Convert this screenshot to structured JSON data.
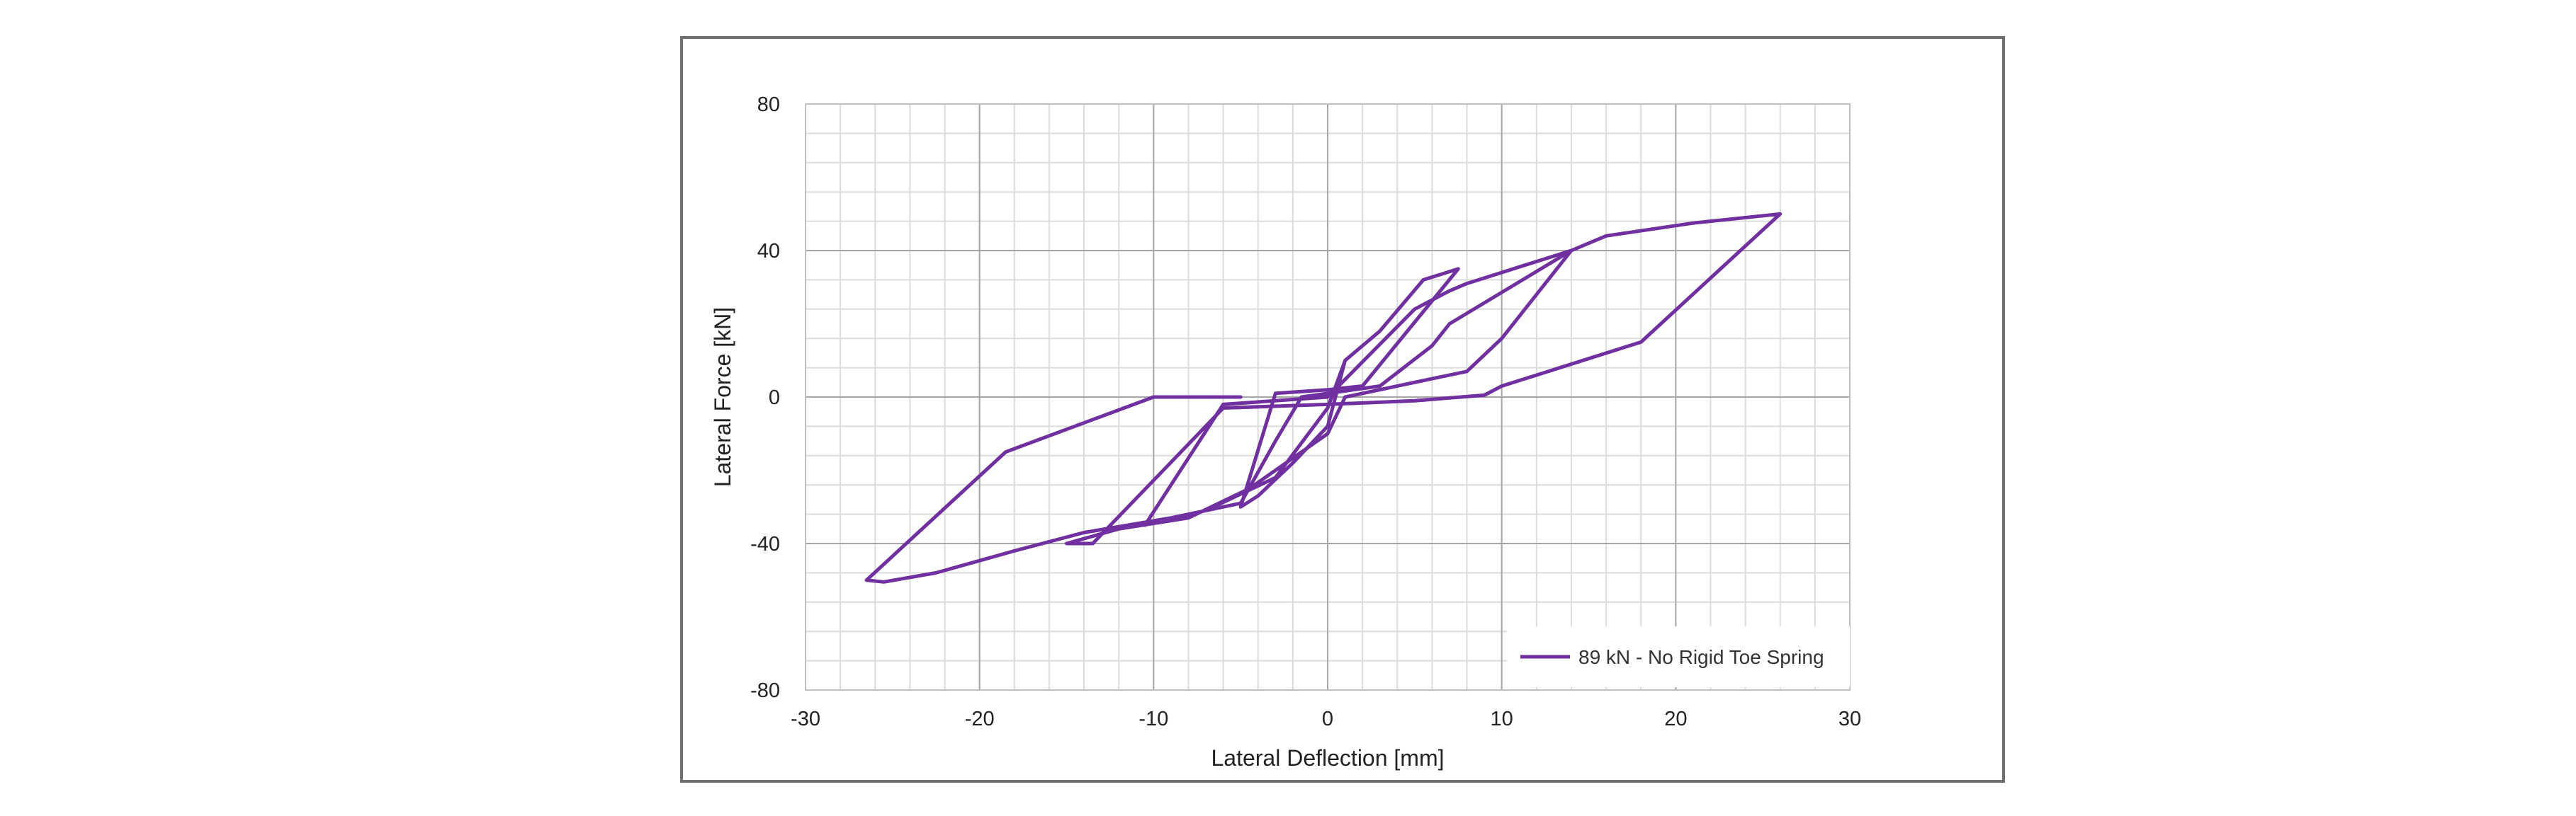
{
  "chart_data": {
    "type": "line",
    "title": "",
    "xlabel": "Lateral Deflection [mm]",
    "ylabel": "Lateral Force [kN]",
    "xlim": [
      -30,
      30
    ],
    "ylim": [
      -80,
      80
    ],
    "x_major_ticks": [
      -30,
      -20,
      -10,
      0,
      10,
      20,
      30
    ],
    "y_major_ticks": [
      -80,
      -40,
      0,
      40,
      80
    ],
    "x_minor_step": 2,
    "y_minor_step": 8,
    "grid": true,
    "legend_position": "bottom-right",
    "series": [
      {
        "name": "89 kN - No Rigid Toe Spring",
        "color": "#7030a0",
        "points": [
          [
            -5,
            0
          ],
          [
            -10,
            0
          ],
          [
            -18.5,
            -15
          ],
          [
            -26.5,
            -50
          ],
          [
            -25.5,
            -50.5
          ],
          [
            -22.5,
            -48
          ],
          [
            -18,
            -42
          ],
          [
            -14,
            -37
          ],
          [
            -9,
            -33
          ],
          [
            -5,
            -29
          ],
          [
            -3,
            -12
          ],
          [
            -1.5,
            0
          ],
          [
            3,
            3
          ],
          [
            6,
            14
          ],
          [
            7,
            20
          ],
          [
            14,
            40
          ],
          [
            16,
            44
          ],
          [
            21,
            47.5
          ],
          [
            26,
            50
          ],
          [
            18,
            15
          ],
          [
            16,
            12
          ],
          [
            10,
            3
          ],
          [
            9,
            0.5
          ],
          [
            5,
            -1
          ],
          [
            0,
            -2
          ],
          [
            -6,
            -3
          ],
          [
            -13.5,
            -40
          ],
          [
            -15,
            -40
          ],
          [
            -12,
            -36
          ],
          [
            -8,
            -33
          ],
          [
            -4.5,
            -25
          ],
          [
            0,
            -10
          ],
          [
            1,
            0
          ],
          [
            6,
            5
          ],
          [
            8,
            7
          ],
          [
            10,
            16
          ],
          [
            14,
            40
          ],
          [
            8,
            31
          ],
          [
            7,
            29
          ],
          [
            5,
            24
          ],
          [
            0,
            0
          ],
          [
            -6,
            -2
          ],
          [
            -10.5,
            -35
          ],
          [
            -10,
            -34
          ],
          [
            -7,
            -31
          ],
          [
            -3,
            -22
          ],
          [
            0,
            -3
          ],
          [
            1,
            10
          ],
          [
            3,
            18
          ],
          [
            5.5,
            32
          ],
          [
            7.5,
            35
          ],
          [
            2,
            3
          ],
          [
            0,
            2
          ],
          [
            -3,
            1
          ],
          [
            -5,
            -30
          ],
          [
            -4,
            -27
          ],
          [
            -2,
            -18
          ],
          [
            0,
            -8
          ],
          [
            1,
            10
          ]
        ]
      }
    ]
  }
}
